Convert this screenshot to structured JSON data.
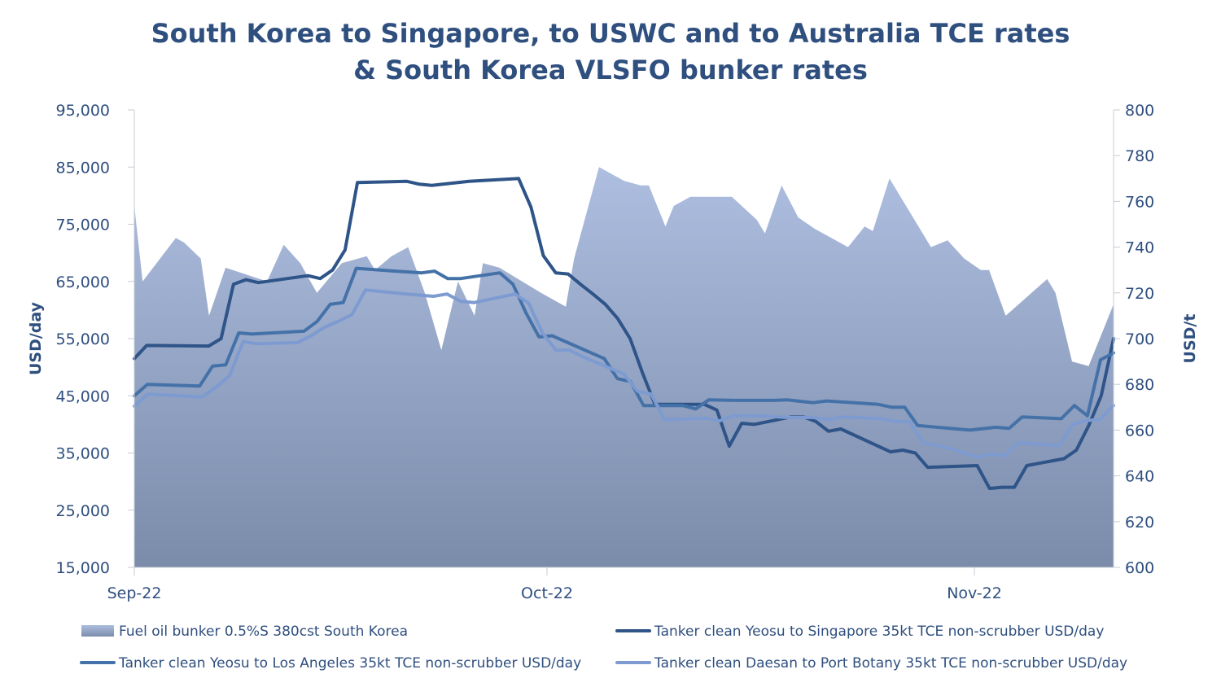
{
  "chart_data": {
    "type": "line",
    "title_line1": "South Korea to Singapore, to USWC and to Australia TCE rates",
    "title_line2": "& South Korea VLSFO bunker rates",
    "ylabel_left": "USD/day",
    "ylabel_right": "USD/t",
    "ylim_left": [
      15000,
      95000
    ],
    "ylim_right": [
      600,
      800
    ],
    "yticks_left": [
      "15,000",
      "25,000",
      "35,000",
      "45,000",
      "55,000",
      "65,000",
      "75,000",
      "85,000",
      "95,000"
    ],
    "yticks_right": [
      "600",
      "620",
      "640",
      "660",
      "680",
      "700",
      "720",
      "740",
      "760",
      "780",
      "800"
    ],
    "x_labels": [
      {
        "label": "Sep-22",
        "index": 0
      },
      {
        "label": "Oct-22",
        "index": 43
      },
      {
        "label": "Nov-22",
        "index": 88
      }
    ],
    "x_count": 104,
    "legend_position": "bottom",
    "colors": {
      "text": "#2F4F7F",
      "area_top": "#AEBEE0",
      "area_bottom": "#7B8BAA",
      "singapore": "#2E5488",
      "los_angeles": "#4472A8",
      "port_botany": "#7D9BD0"
    },
    "series": [
      {
        "name": "Fuel oil bunker 0.5%S 380cst South Korea",
        "axis": "right",
        "kind": "area",
        "points": [
          [
            0,
            758
          ],
          [
            1,
            725
          ],
          [
            5,
            744
          ],
          [
            6,
            742
          ],
          [
            8,
            735
          ],
          [
            9,
            710
          ],
          [
            11,
            731
          ],
          [
            16,
            725
          ],
          [
            18,
            741
          ],
          [
            20,
            733
          ],
          [
            22,
            720
          ],
          [
            25,
            733
          ],
          [
            28,
            736
          ],
          [
            29,
            730
          ],
          [
            31,
            736
          ],
          [
            33,
            740
          ],
          [
            35,
            720
          ],
          [
            37,
            695
          ],
          [
            39,
            725
          ],
          [
            41,
            710
          ],
          [
            42,
            733
          ],
          [
            44,
            731
          ],
          [
            49,
            720
          ],
          [
            52,
            714
          ],
          [
            53,
            735
          ],
          [
            56,
            775
          ],
          [
            59,
            769
          ],
          [
            61,
            767
          ],
          [
            62,
            767
          ],
          [
            64,
            749
          ],
          [
            65,
            758
          ],
          [
            67,
            762
          ],
          [
            72,
            762
          ],
          [
            75,
            752
          ],
          [
            76,
            746
          ],
          [
            78,
            767
          ],
          [
            80,
            753
          ],
          [
            82,
            748
          ],
          [
            84,
            744
          ],
          [
            86,
            740
          ],
          [
            88,
            749
          ],
          [
            89,
            747
          ],
          [
            91,
            770
          ],
          [
            96,
            740
          ],
          [
            98,
            743
          ],
          [
            100,
            735
          ],
          [
            102,
            730
          ],
          [
            103,
            730
          ],
          [
            105,
            710
          ],
          [
            110,
            726
          ],
          [
            111,
            720
          ],
          [
            113,
            690
          ],
          [
            115,
            688
          ],
          [
            118,
            715
          ]
        ]
      },
      {
        "name": "Tanker clean Yeosu to Singapore 35kt TCE non-scrubber USD/day",
        "axis": "left",
        "kind": "line",
        "points": [
          [
            0,
            51500
          ],
          [
            1,
            53800
          ],
          [
            6,
            53700
          ],
          [
            7,
            55000
          ],
          [
            8,
            64500
          ],
          [
            9,
            65300
          ],
          [
            10,
            64800
          ],
          [
            14,
            66000
          ],
          [
            15,
            65500
          ],
          [
            16,
            67000
          ],
          [
            17,
            70500
          ],
          [
            18,
            82300
          ],
          [
            22,
            82500
          ],
          [
            23,
            82000
          ],
          [
            24,
            81800
          ],
          [
            27,
            82500
          ],
          [
            31,
            83000
          ],
          [
            32,
            78000
          ],
          [
            33,
            69500
          ],
          [
            34,
            66500
          ],
          [
            35,
            66300
          ],
          [
            36,
            64500
          ],
          [
            37,
            62800
          ],
          [
            38,
            61000
          ],
          [
            39,
            58500
          ],
          [
            40,
            55000
          ],
          [
            41,
            49000
          ],
          [
            42,
            43500
          ],
          [
            46,
            43500
          ],
          [
            47,
            42500
          ],
          [
            48,
            36200
          ],
          [
            49,
            40200
          ],
          [
            50,
            40000
          ],
          [
            53,
            41300
          ],
          [
            54,
            41300
          ],
          [
            55,
            40500
          ],
          [
            56,
            38800
          ],
          [
            57,
            39200
          ],
          [
            58,
            38200
          ],
          [
            60,
            36200
          ],
          [
            61,
            35200
          ],
          [
            62,
            35500
          ],
          [
            63,
            35000
          ],
          [
            64,
            32500
          ],
          [
            68,
            32800
          ],
          [
            69,
            28800
          ],
          [
            70,
            29000
          ],
          [
            71,
            29000
          ],
          [
            72,
            32800
          ],
          [
            75,
            34000
          ],
          [
            76,
            35500
          ],
          [
            77,
            39800
          ],
          [
            78,
            45000
          ],
          [
            79,
            55000
          ]
        ]
      },
      {
        "name": "Tanker clean Yeosu to Los Angeles 35kt TCE non-scrubber USD/day",
        "axis": "left",
        "kind": "line",
        "points": [
          [
            0,
            45000
          ],
          [
            1,
            47000
          ],
          [
            5,
            46700
          ],
          [
            6,
            50200
          ],
          [
            7,
            50400
          ],
          [
            8,
            56000
          ],
          [
            9,
            55800
          ],
          [
            13,
            56300
          ],
          [
            14,
            58000
          ],
          [
            15,
            61000
          ],
          [
            16,
            61300
          ],
          [
            17,
            67300
          ],
          [
            20,
            66800
          ],
          [
            22,
            66500
          ],
          [
            23,
            66800
          ],
          [
            24,
            65500
          ],
          [
            25,
            65500
          ],
          [
            28,
            66500
          ],
          [
            29,
            64500
          ],
          [
            30,
            59500
          ],
          [
            31,
            55300
          ],
          [
            32,
            55500
          ],
          [
            33,
            54500
          ],
          [
            35,
            52500
          ],
          [
            36,
            51500
          ],
          [
            37,
            48000
          ],
          [
            38,
            47500
          ],
          [
            39,
            43300
          ],
          [
            41,
            43300
          ],
          [
            42,
            43300
          ],
          [
            43,
            42700
          ],
          [
            44,
            44300
          ],
          [
            46,
            44200
          ],
          [
            49,
            44200
          ],
          [
            50,
            44300
          ],
          [
            52,
            43800
          ],
          [
            53,
            44100
          ],
          [
            57,
            43500
          ],
          [
            58,
            43000
          ],
          [
            59,
            43000
          ],
          [
            60,
            39800
          ],
          [
            62,
            39400
          ],
          [
            64,
            39000
          ],
          [
            66,
            39500
          ],
          [
            67,
            39300
          ],
          [
            68,
            41300
          ],
          [
            71,
            41000
          ],
          [
            72,
            43300
          ],
          [
            73,
            41500
          ],
          [
            74,
            51300
          ],
          [
            75,
            52500
          ]
        ]
      },
      {
        "name": "Tanker clean Daesan to Port Botany 35kt TCE non-scrubber USD/day",
        "axis": "left",
        "kind": "line",
        "points": [
          [
            0,
            43200
          ],
          [
            1,
            45300
          ],
          [
            5,
            44800
          ],
          [
            6,
            46500
          ],
          [
            7,
            48500
          ],
          [
            8,
            54500
          ],
          [
            9,
            54100
          ],
          [
            12,
            54300
          ],
          [
            13,
            55500
          ],
          [
            14,
            57000
          ],
          [
            15,
            58000
          ],
          [
            16,
            59200
          ],
          [
            17,
            63500
          ],
          [
            20,
            62800
          ],
          [
            22,
            62400
          ],
          [
            23,
            62800
          ],
          [
            24,
            61500
          ],
          [
            25,
            61300
          ],
          [
            28,
            62800
          ],
          [
            29,
            61200
          ],
          [
            30,
            56000
          ],
          [
            31,
            53000
          ],
          [
            32,
            53000
          ],
          [
            33,
            51800
          ],
          [
            35,
            49800
          ],
          [
            36,
            48800
          ],
          [
            37,
            45800
          ],
          [
            38,
            45300
          ],
          [
            39,
            40800
          ],
          [
            42,
            41100
          ],
          [
            43,
            40600
          ],
          [
            44,
            41500
          ],
          [
            46,
            41500
          ],
          [
            48,
            41200
          ],
          [
            50,
            41200
          ],
          [
            51,
            40800
          ],
          [
            52,
            41300
          ],
          [
            55,
            41000
          ],
          [
            56,
            40500
          ],
          [
            57,
            40500
          ],
          [
            58,
            36800
          ],
          [
            60,
            35800
          ],
          [
            61,
            35000
          ],
          [
            62,
            34300
          ],
          [
            63,
            34800
          ],
          [
            64,
            34500
          ],
          [
            65,
            36800
          ],
          [
            68,
            36300
          ],
          [
            69,
            40000
          ],
          [
            70,
            40700
          ],
          [
            71,
            40800
          ],
          [
            72,
            43300
          ]
        ]
      }
    ]
  }
}
